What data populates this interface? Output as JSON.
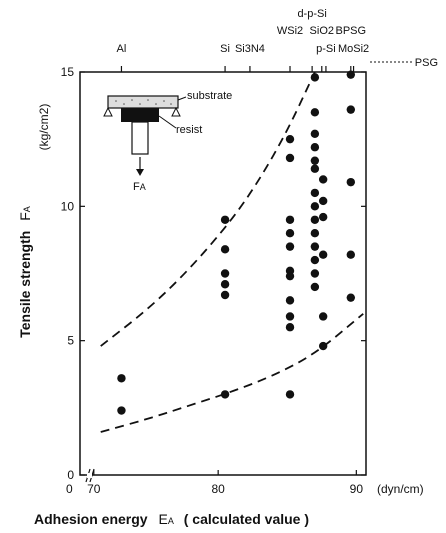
{
  "chart_data": {
    "type": "scatter",
    "title": "",
    "xlabel": "Adhesion energy",
    "xlabel_symbol": "E",
    "xlabel_symbol_sub": "A",
    "xlabel_suffix": "( calculated value )",
    "ylabel": "Tensile strength",
    "ylabel_symbol": "F",
    "ylabel_symbol_sub": "A",
    "ylabel_unit": "(kg/cm2)",
    "xlim": [
      70,
      90
    ],
    "ylim": [
      0,
      15
    ],
    "x_ticks": [
      {
        "value": 71,
        "label": "70"
      },
      {
        "value": 80,
        "label": "80"
      },
      {
        "value": 90,
        "label": "90"
      }
    ],
    "x_unit": "(dyn/cm)",
    "x_origin_label": "0",
    "y_ticks": [
      {
        "value": 0,
        "label": "0"
      },
      {
        "value": 5,
        "label": "5"
      },
      {
        "value": 10,
        "label": "10"
      },
      {
        "value": 15,
        "label": "15"
      }
    ],
    "top_axis_labels": [
      {
        "text": "Al",
        "x": 73,
        "row": 0
      },
      {
        "text": "Si",
        "x": 80.5,
        "row": 0
      },
      {
        "text": "Si3N4",
        "x": 82.3,
        "row": 0
      },
      {
        "text": "WSi2",
        "x": 85.2,
        "row": 1
      },
      {
        "text": "d-p-Si",
        "x": 86.8,
        "row": 2
      },
      {
        "text": "SiO2",
        "x": 87.5,
        "row": 1
      },
      {
        "text": "BPSG",
        "x": 89.6,
        "row": 1
      },
      {
        "text": "p-Si",
        "x": 87.8,
        "row": 0
      },
      {
        "text": "MoSi2",
        "x": 89.8,
        "row": 0
      },
      {
        "text": "PSG",
        "x": 91.1,
        "row": -1
      }
    ],
    "points": [
      {
        "x": 73,
        "y": 3.6
      },
      {
        "x": 73,
        "y": 2.4
      },
      {
        "x": 80.5,
        "y": 9.5
      },
      {
        "x": 80.5,
        "y": 8.4
      },
      {
        "x": 80.5,
        "y": 7.5
      },
      {
        "x": 80.5,
        "y": 7.1
      },
      {
        "x": 80.5,
        "y": 6.7
      },
      {
        "x": 80.5,
        "y": 3.0
      },
      {
        "x": 85.2,
        "y": 12.5
      },
      {
        "x": 85.2,
        "y": 11.8
      },
      {
        "x": 85.2,
        "y": 9.5
      },
      {
        "x": 85.2,
        "y": 9.0
      },
      {
        "x": 85.2,
        "y": 8.5
      },
      {
        "x": 85.2,
        "y": 7.6
      },
      {
        "x": 85.2,
        "y": 7.4
      },
      {
        "x": 85.2,
        "y": 6.5
      },
      {
        "x": 85.2,
        "y": 5.9
      },
      {
        "x": 85.2,
        "y": 5.5
      },
      {
        "x": 85.2,
        "y": 3.0
      },
      {
        "x": 87.0,
        "y": 14.8
      },
      {
        "x": 87.0,
        "y": 13.5
      },
      {
        "x": 87.0,
        "y": 12.7
      },
      {
        "x": 87.0,
        "y": 12.2
      },
      {
        "x": 87.0,
        "y": 11.7
      },
      {
        "x": 87.0,
        "y": 11.4
      },
      {
        "x": 87.0,
        "y": 10.5
      },
      {
        "x": 87.0,
        "y": 10.0
      },
      {
        "x": 87.0,
        "y": 9.5
      },
      {
        "x": 87.0,
        "y": 9.0
      },
      {
        "x": 87.0,
        "y": 8.5
      },
      {
        "x": 87.0,
        "y": 8.0
      },
      {
        "x": 87.0,
        "y": 7.5
      },
      {
        "x": 87.0,
        "y": 7.0
      },
      {
        "x": 87.6,
        "y": 11.0
      },
      {
        "x": 87.6,
        "y": 10.2
      },
      {
        "x": 87.6,
        "y": 9.6
      },
      {
        "x": 87.6,
        "y": 8.2
      },
      {
        "x": 87.6,
        "y": 5.9
      },
      {
        "x": 87.6,
        "y": 4.8
      },
      {
        "x": 89.6,
        "y": 14.9
      },
      {
        "x": 89.6,
        "y": 13.6
      },
      {
        "x": 89.6,
        "y": 10.9
      },
      {
        "x": 89.6,
        "y": 8.2
      },
      {
        "x": 89.6,
        "y": 6.6
      }
    ],
    "curves": [
      {
        "name": "",
        "style": "dashed",
        "points": [
          [
            71.5,
            4.8
          ],
          [
            75,
            6.2
          ],
          [
            78,
            7.7
          ],
          [
            81,
            9.5
          ],
          [
            83,
            11.0
          ],
          [
            85,
            12.8
          ],
          [
            87.0,
            15.0
          ]
        ]
      },
      {
        "name": "",
        "style": "dashed",
        "points": [
          [
            71.5,
            1.6
          ],
          [
            75,
            2.1
          ],
          [
            78,
            2.6
          ],
          [
            81,
            3.1
          ],
          [
            84,
            3.7
          ],
          [
            87,
            4.5
          ],
          [
            90.5,
            6.0
          ]
        ]
      }
    ],
    "grid": false,
    "legend": "none"
  },
  "inset": {
    "substrate_label": "substrate",
    "resist_label": "resist",
    "force_symbol": "F",
    "force_sub": "A"
  }
}
